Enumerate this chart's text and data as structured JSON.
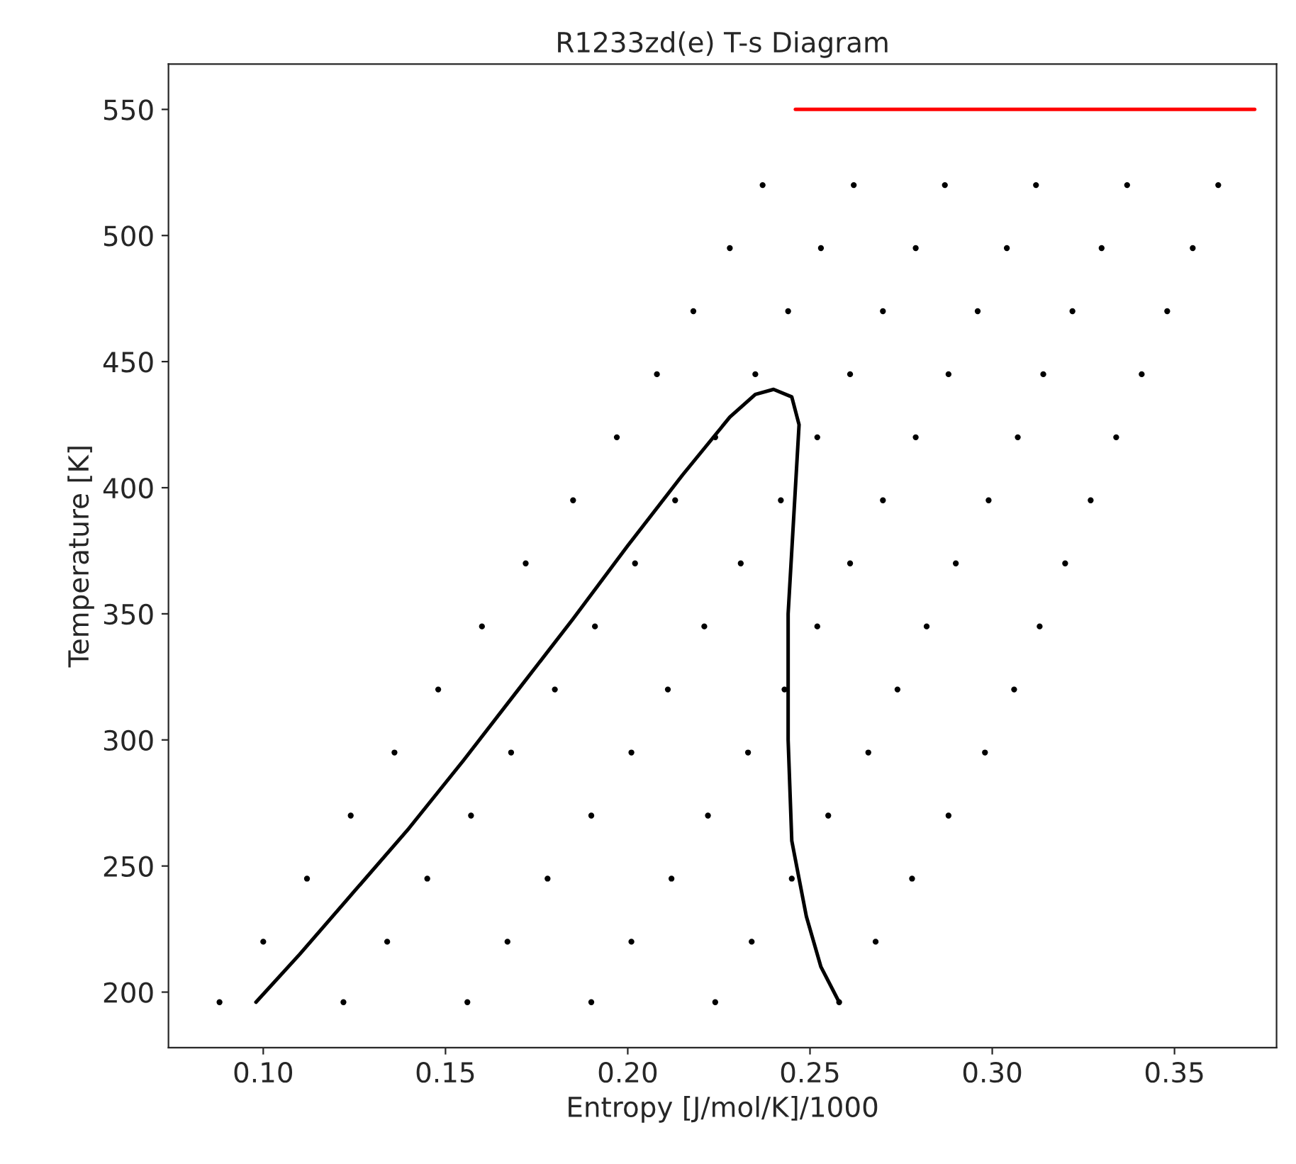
{
  "chart_data": {
    "type": "scatter",
    "title": "R1233zd(e) T-s Diagram",
    "xlabel": "Entropy [J/mol/K]/1000",
    "ylabel": "Temperature [K]",
    "xlim": [
      0.074,
      0.378
    ],
    "ylim": [
      178,
      568
    ],
    "xticks": [
      {
        "value": 0.1,
        "label": "0.10"
      },
      {
        "value": 0.15,
        "label": "0.15"
      },
      {
        "value": 0.2,
        "label": "0.20"
      },
      {
        "value": 0.25,
        "label": "0.25"
      },
      {
        "value": 0.3,
        "label": "0.30"
      },
      {
        "value": 0.35,
        "label": "0.35"
      }
    ],
    "yticks": [
      200,
      250,
      300,
      350,
      400,
      450,
      500,
      550
    ],
    "grid": false,
    "marker": "circle",
    "series": [
      {
        "color": "#000000",
        "x": [
          0.088,
          0.122,
          0.156,
          0.19,
          0.224,
          0.258,
          0.1,
          0.134,
          0.167,
          0.201,
          0.234,
          0.268,
          0.112,
          0.145,
          0.178,
          0.212,
          0.245,
          0.278,
          0.124,
          0.157,
          0.19,
          0.222,
          0.255,
          0.288,
          0.136,
          0.168,
          0.201,
          0.233,
          0.266,
          0.298,
          0.148,
          0.18,
          0.211,
          0.243,
          0.274,
          0.306,
          0.16,
          0.191,
          0.221,
          0.252,
          0.282,
          0.313,
          0.172,
          0.202,
          0.231,
          0.261,
          0.29,
          0.32,
          0.185,
          0.213,
          0.242,
          0.27,
          0.299,
          0.327,
          0.197,
          0.224,
          0.252,
          0.279,
          0.307,
          0.334,
          0.208,
          0.235,
          0.261,
          0.288,
          0.314,
          0.341,
          0.218,
          0.244,
          0.27,
          0.296,
          0.322,
          0.348,
          0.228,
          0.253,
          0.279,
          0.304,
          0.33,
          0.355,
          0.237,
          0.262,
          0.287,
          0.312,
          0.337,
          0.362
        ],
        "values": [
          196,
          196,
          196,
          196,
          196,
          196,
          220,
          220,
          220,
          220,
          220,
          220,
          245,
          245,
          245,
          245,
          245,
          245,
          270,
          270,
          270,
          270,
          270,
          270,
          295,
          295,
          295,
          295,
          295,
          295,
          320,
          320,
          320,
          320,
          320,
          320,
          345,
          345,
          345,
          345,
          345,
          345,
          370,
          370,
          370,
          370,
          370,
          370,
          395,
          395,
          395,
          395,
          395,
          395,
          420,
          420,
          420,
          420,
          420,
          420,
          445,
          445,
          445,
          445,
          445,
          445,
          470,
          470,
          470,
          470,
          470,
          470,
          495,
          495,
          495,
          495,
          495,
          495,
          520,
          520,
          520,
          520,
          520,
          520
        ]
      },
      {
        "type": "line",
        "color": "#000000",
        "marker": "none",
        "x": [
          0.098,
          0.11,
          0.125,
          0.14,
          0.155,
          0.17,
          0.185,
          0.2,
          0.215,
          0.228,
          0.235,
          0.24,
          0.245,
          0.247,
          0.246,
          0.244,
          0.244,
          0.245,
          0.249,
          0.253,
          0.258
        ],
        "values": [
          196,
          215,
          240,
          265,
          292,
          320,
          348,
          377,
          405,
          428,
          437,
          439,
          436,
          425,
          400,
          350,
          300,
          260,
          230,
          210,
          196
        ]
      },
      {
        "type": "line",
        "color": "#ff0000",
        "marker": "none",
        "x": [
          0.246,
          0.372
        ],
        "values": [
          550,
          550
        ]
      }
    ]
  }
}
